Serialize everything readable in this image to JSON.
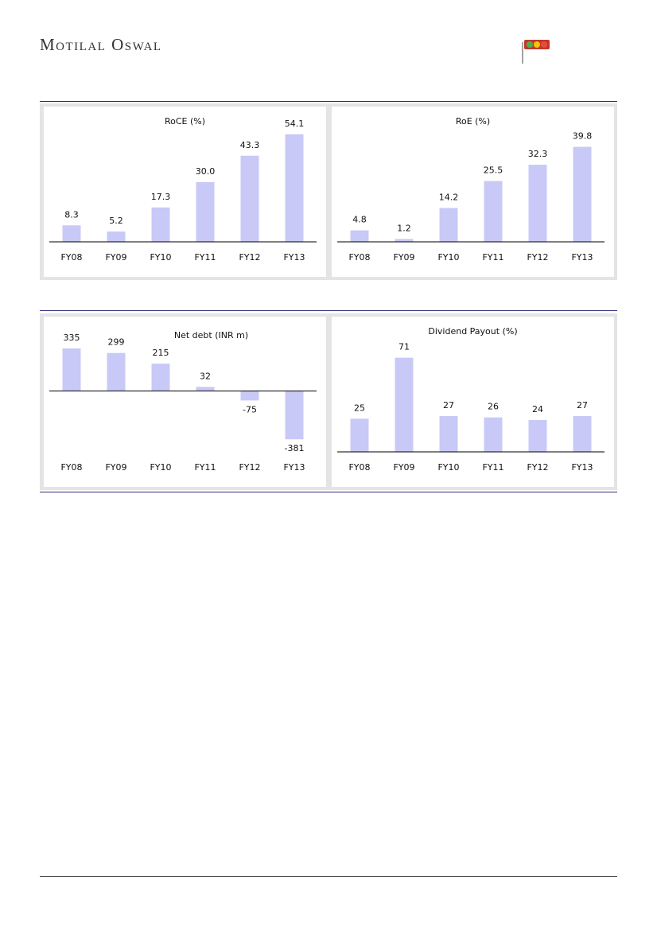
{
  "header": {
    "brand": "Motilal Oswal"
  },
  "chart_data": [
    {
      "type": "bar",
      "title": "RoCE (%)",
      "categories": [
        "FY08",
        "FY09",
        "FY10",
        "FY11",
        "FY12",
        "FY13"
      ],
      "values": [
        8.3,
        5.2,
        17.3,
        30.0,
        43.3,
        54.1
      ],
      "value_labels": [
        "8.3",
        "5.2",
        "17.3",
        "30.0",
        "43.3",
        "54.1"
      ],
      "color": "#c9c9f7",
      "ylim": [
        0,
        60
      ]
    },
    {
      "type": "bar",
      "title": "RoE (%)",
      "categories": [
        "FY08",
        "FY09",
        "FY10",
        "FY11",
        "FY12",
        "FY13"
      ],
      "values": [
        4.8,
        1.2,
        14.2,
        25.5,
        32.3,
        39.8
      ],
      "color": "#c9c9f7",
      "ylim": [
        0,
        50
      ]
    },
    {
      "type": "bar",
      "title": "Net debt (INR m)",
      "categories": [
        "FY08",
        "FY09",
        "FY10",
        "FY11",
        "FY12",
        "FY13"
      ],
      "values": [
        335,
        299,
        215,
        32,
        -75,
        -381
      ],
      "color": "#c9c9f7",
      "ylim": [
        -480,
        460
      ]
    },
    {
      "type": "bar",
      "title": "Dividend Payout (%)",
      "categories": [
        "FY08",
        "FY09",
        "FY10",
        "FY11",
        "FY12",
        "FY13"
      ],
      "values": [
        25,
        71,
        27,
        26,
        24,
        27
      ],
      "color": "#c9c9f7",
      "ylim": [
        0,
        90
      ]
    }
  ]
}
